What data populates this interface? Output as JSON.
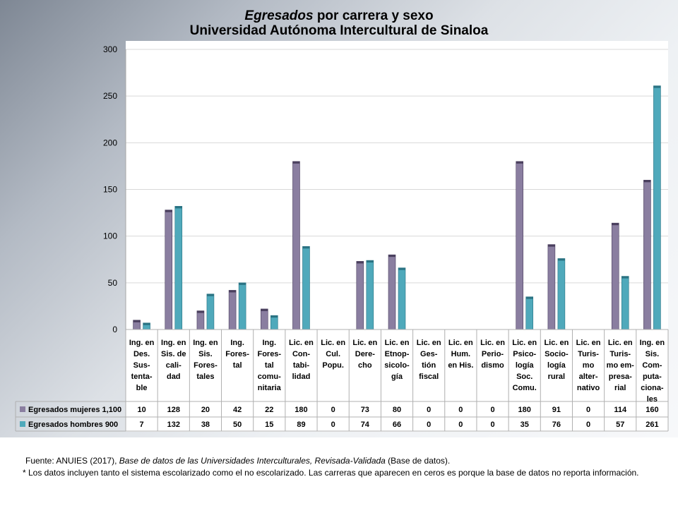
{
  "chart_data": {
    "type": "bar",
    "title_italic": "Egresados",
    "title_rest": " por carrera y sexo",
    "subtitle": "Universidad Autónoma Intercultural de Sinaloa",
    "ylim": [
      0,
      300
    ],
    "yticks": [
      "0",
      "50",
      "100",
      "150",
      "200",
      "250",
      "300"
    ],
    "categories": [
      [
        "Ing. en",
        "Des.",
        "Sus-",
        "tenta-",
        "ble"
      ],
      [
        "Ing. en",
        "Sis. de",
        "cali-",
        "dad"
      ],
      [
        "Ing. en",
        "Sis.",
        "Fores-",
        "tales"
      ],
      [
        "Ing.",
        "Fores-",
        "tal"
      ],
      [
        "Ing.",
        "Fores-",
        "tal",
        "comu-",
        "nitaria"
      ],
      [
        "Lic. en",
        "Con-",
        "tabi-",
        "lidad"
      ],
      [
        "Lic. en",
        "Cul.",
        "Popu."
      ],
      [
        "Lic. en",
        "Dere-",
        "cho"
      ],
      [
        "Lic. en",
        "Etnop-",
        "sicolo-",
        "gía"
      ],
      [
        "Lic. en",
        "Ges-",
        "tión",
        "fiscal"
      ],
      [
        "Lic. en",
        "Hum.",
        "en His."
      ],
      [
        "Lic. en",
        "Perio-",
        "dismo"
      ],
      [
        "Lic. en",
        "Psico-",
        "logía",
        "Soc.",
        "Comu."
      ],
      [
        "Lic. en",
        "Socio-",
        "logía",
        "rural"
      ],
      [
        "Lic. en",
        "Turis-",
        "mo",
        "alter-",
        "nativo"
      ],
      [
        "Lic. en",
        "Turis-",
        "mo em-",
        "presa-",
        "rial"
      ],
      [
        "Ing. en",
        "Sis.",
        "Com-",
        "puta-",
        "ciona-",
        "les"
      ]
    ],
    "series": [
      {
        "name": "Egresados mujeres 1,100",
        "color": "#8a7ea0",
        "values": [
          10,
          128,
          20,
          42,
          22,
          180,
          0,
          73,
          80,
          0,
          0,
          0,
          180,
          91,
          0,
          114,
          160
        ]
      },
      {
        "name": "Egresados hombres 900",
        "color": "#4fa9bb",
        "values": [
          7,
          132,
          38,
          50,
          15,
          89,
          0,
          74,
          66,
          0,
          0,
          0,
          35,
          76,
          0,
          57,
          261
        ]
      }
    ],
    "grid": true,
    "legend": "data-table"
  },
  "source": {
    "prefix": "Fuente: ANUIES (2017),  ",
    "italic": "Base de datos de las Universidades Interculturales, Revisada-Validada",
    "suffix": "  (Base de datos)."
  },
  "note": "* Los datos incluyen tanto el sistema escolarizado como el no escolarizado. Las carreras que aparecen en ceros es porque la base de datos no reporta información."
}
